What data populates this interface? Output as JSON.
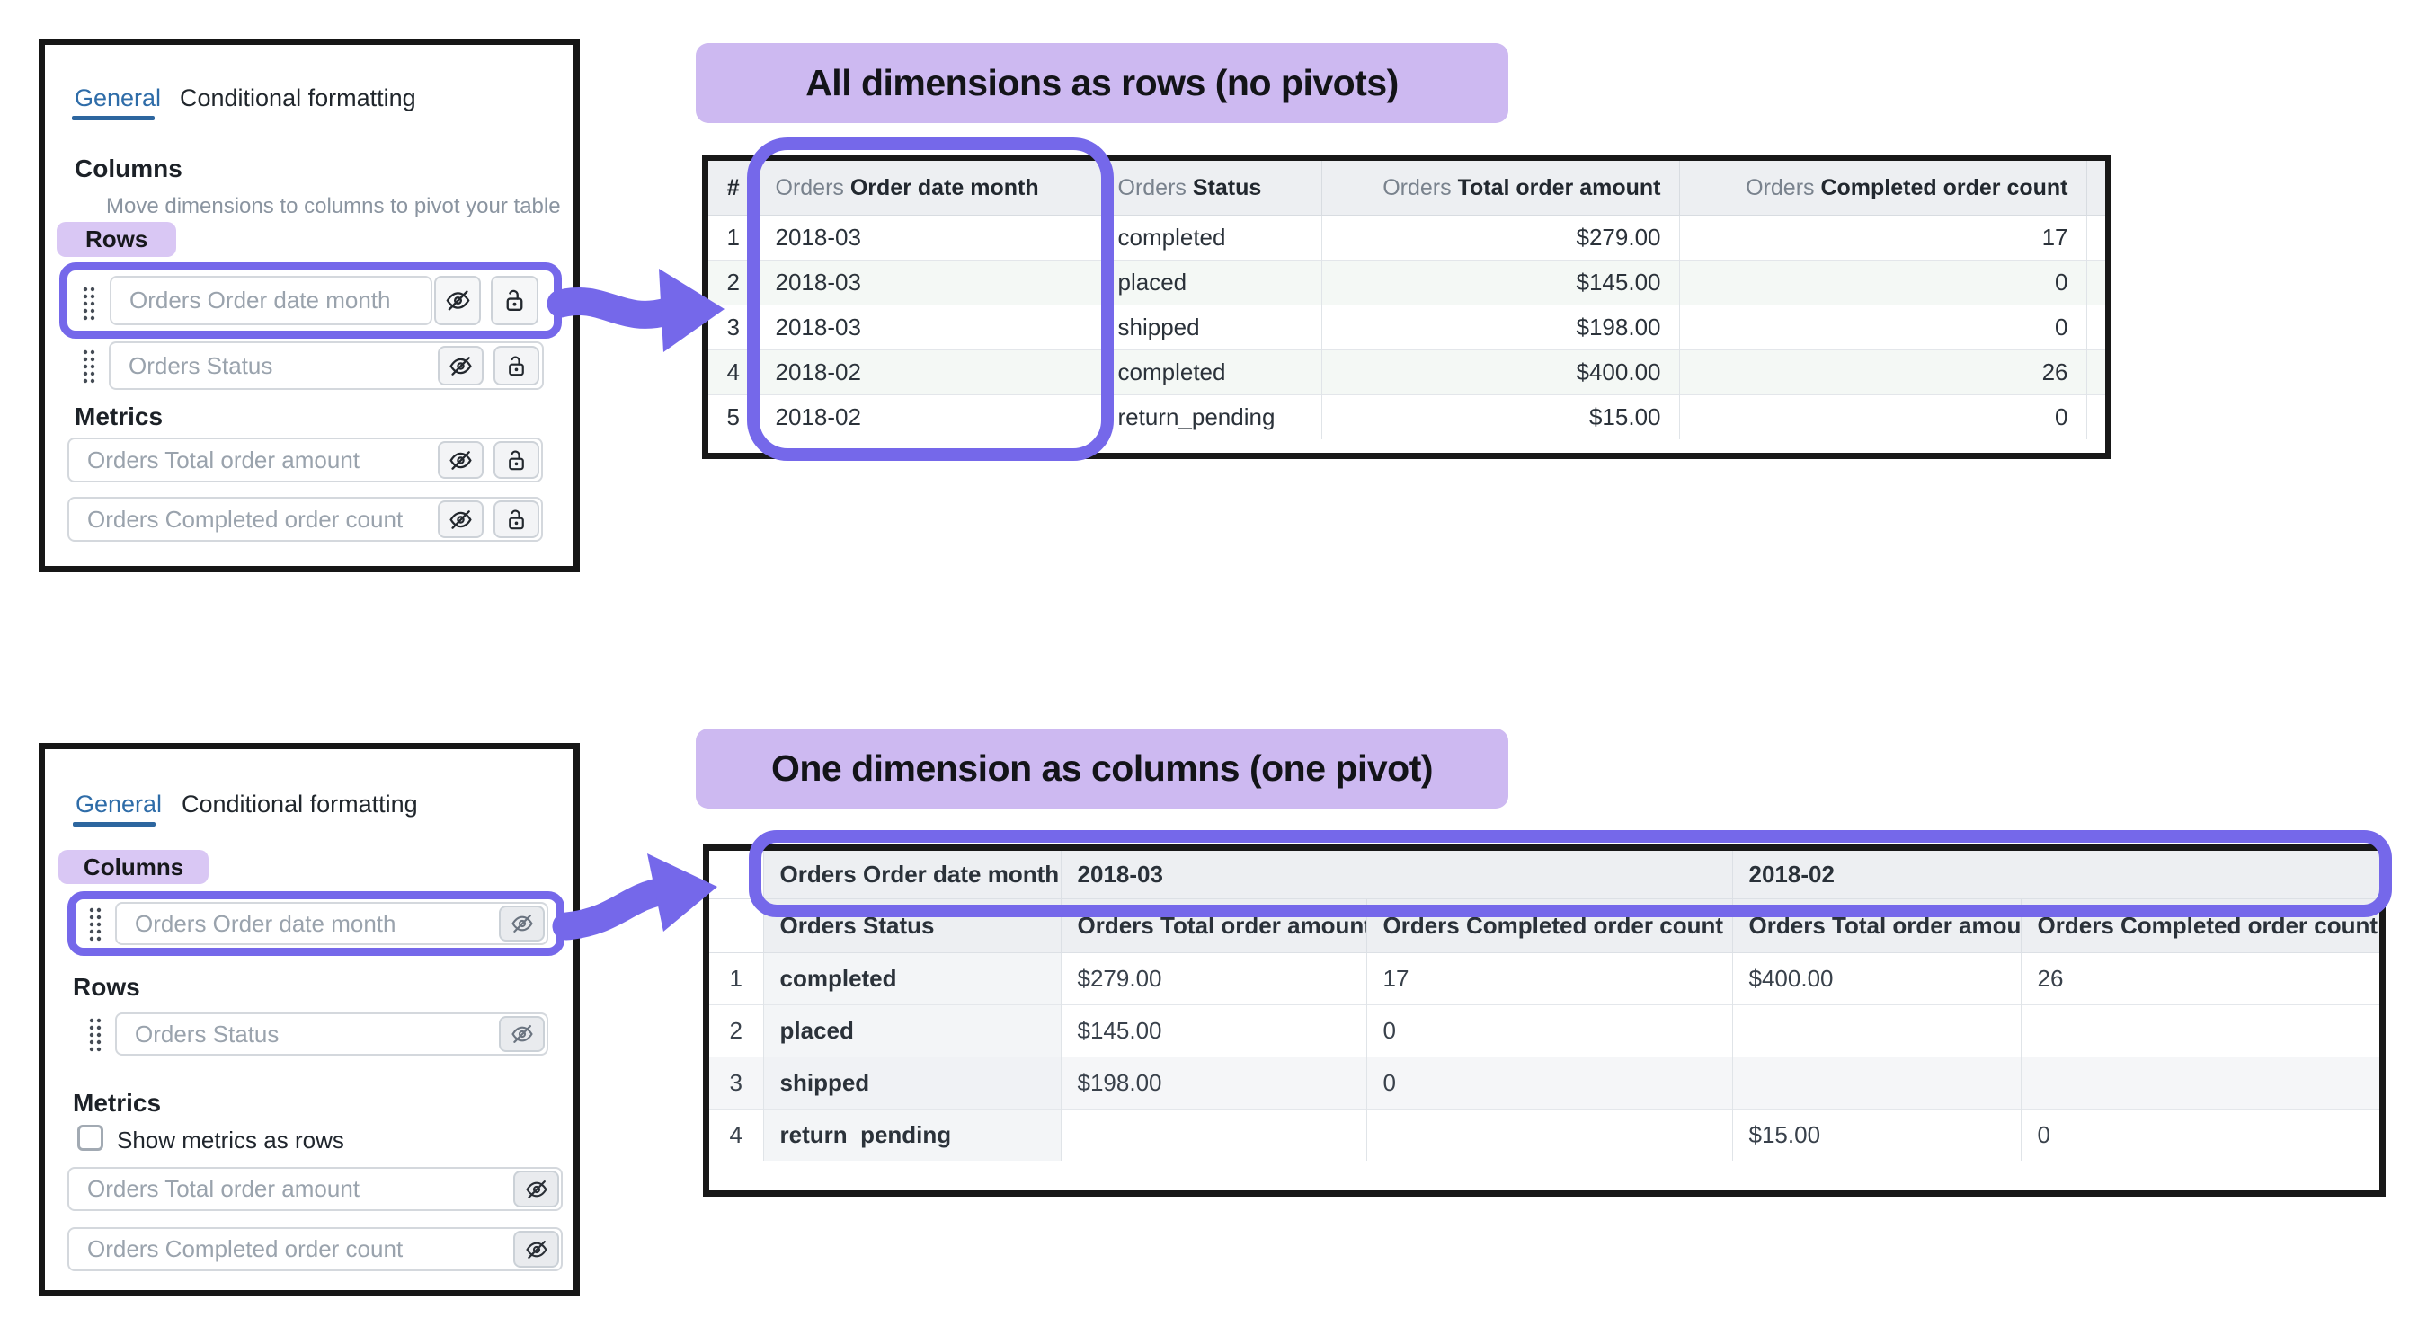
{
  "panel_top": {
    "tabs": [
      {
        "label": "General",
        "active": true
      },
      {
        "label": "Conditional formatting",
        "active": false
      }
    ],
    "columns_heading": "Columns",
    "columns_hint": "Move dimensions to columns to pivot your table",
    "rows_badge": "Rows",
    "row_fields": [
      "Orders Order date month",
      "Orders Status"
    ],
    "metrics_heading": "Metrics",
    "metric_fields": [
      "Orders Total order amount",
      "Orders Completed order count"
    ]
  },
  "panel_bottom": {
    "tabs": [
      {
        "label": "General",
        "active": true
      },
      {
        "label": "Conditional formatting",
        "active": false
      }
    ],
    "columns_badge": "Columns",
    "column_fields": [
      "Orders Order date month"
    ],
    "rows_heading": "Rows",
    "row_fields": [
      "Orders Status"
    ],
    "metrics_heading": "Metrics",
    "checkbox_label": "Show metrics as rows",
    "checkbox_checked": false,
    "metric_fields": [
      "Orders Total order amount",
      "Orders Completed order count"
    ]
  },
  "section_no_pivot": {
    "title": "All dimensions as rows (no pivots)",
    "table": {
      "headers": [
        {
          "prefix": "",
          "label": "#"
        },
        {
          "prefix": "Orders",
          "label": "Order date month"
        },
        {
          "prefix": "Orders",
          "label": "Status"
        },
        {
          "prefix": "Orders",
          "label": "Total order amount"
        },
        {
          "prefix": "Orders",
          "label": "Completed order count"
        }
      ],
      "rows": [
        [
          "1",
          "2018-03",
          "completed",
          "$279.00",
          "17"
        ],
        [
          "2",
          "2018-03",
          "placed",
          "$145.00",
          "0"
        ],
        [
          "3",
          "2018-03",
          "shipped",
          "$198.00",
          "0"
        ],
        [
          "4",
          "2018-02",
          "completed",
          "$400.00",
          "26"
        ],
        [
          "5",
          "2018-02",
          "return_pending",
          "$15.00",
          "0"
        ]
      ]
    }
  },
  "section_one_pivot": {
    "title": "One dimension as columns (one pivot)",
    "table": {
      "pivot_header_label": "Orders Order date month",
      "pivot_values": [
        "2018-03",
        "2018-02"
      ],
      "column_headers": [
        "Orders Status",
        "Orders Total order amount",
        "Orders Completed order count",
        "Orders Total order amount",
        "Orders Completed order count"
      ],
      "rows": [
        [
          "1",
          "completed",
          "$279.00",
          "17",
          "$400.00",
          "26"
        ],
        [
          "2",
          "placed",
          "$145.00",
          "0",
          "",
          ""
        ],
        [
          "3",
          "shipped",
          "$198.00",
          "0",
          "",
          ""
        ],
        [
          "4",
          "return_pending",
          "",
          "",
          "$15.00",
          "0"
        ]
      ]
    }
  },
  "colors": {
    "accent_purple": "#7568EA",
    "badge_lavender": "#D9C7F4",
    "pill_lavender": "#CDB9F1",
    "tab_blue": "#2E6CA8",
    "table_header_bg": "#EDEFF2"
  }
}
